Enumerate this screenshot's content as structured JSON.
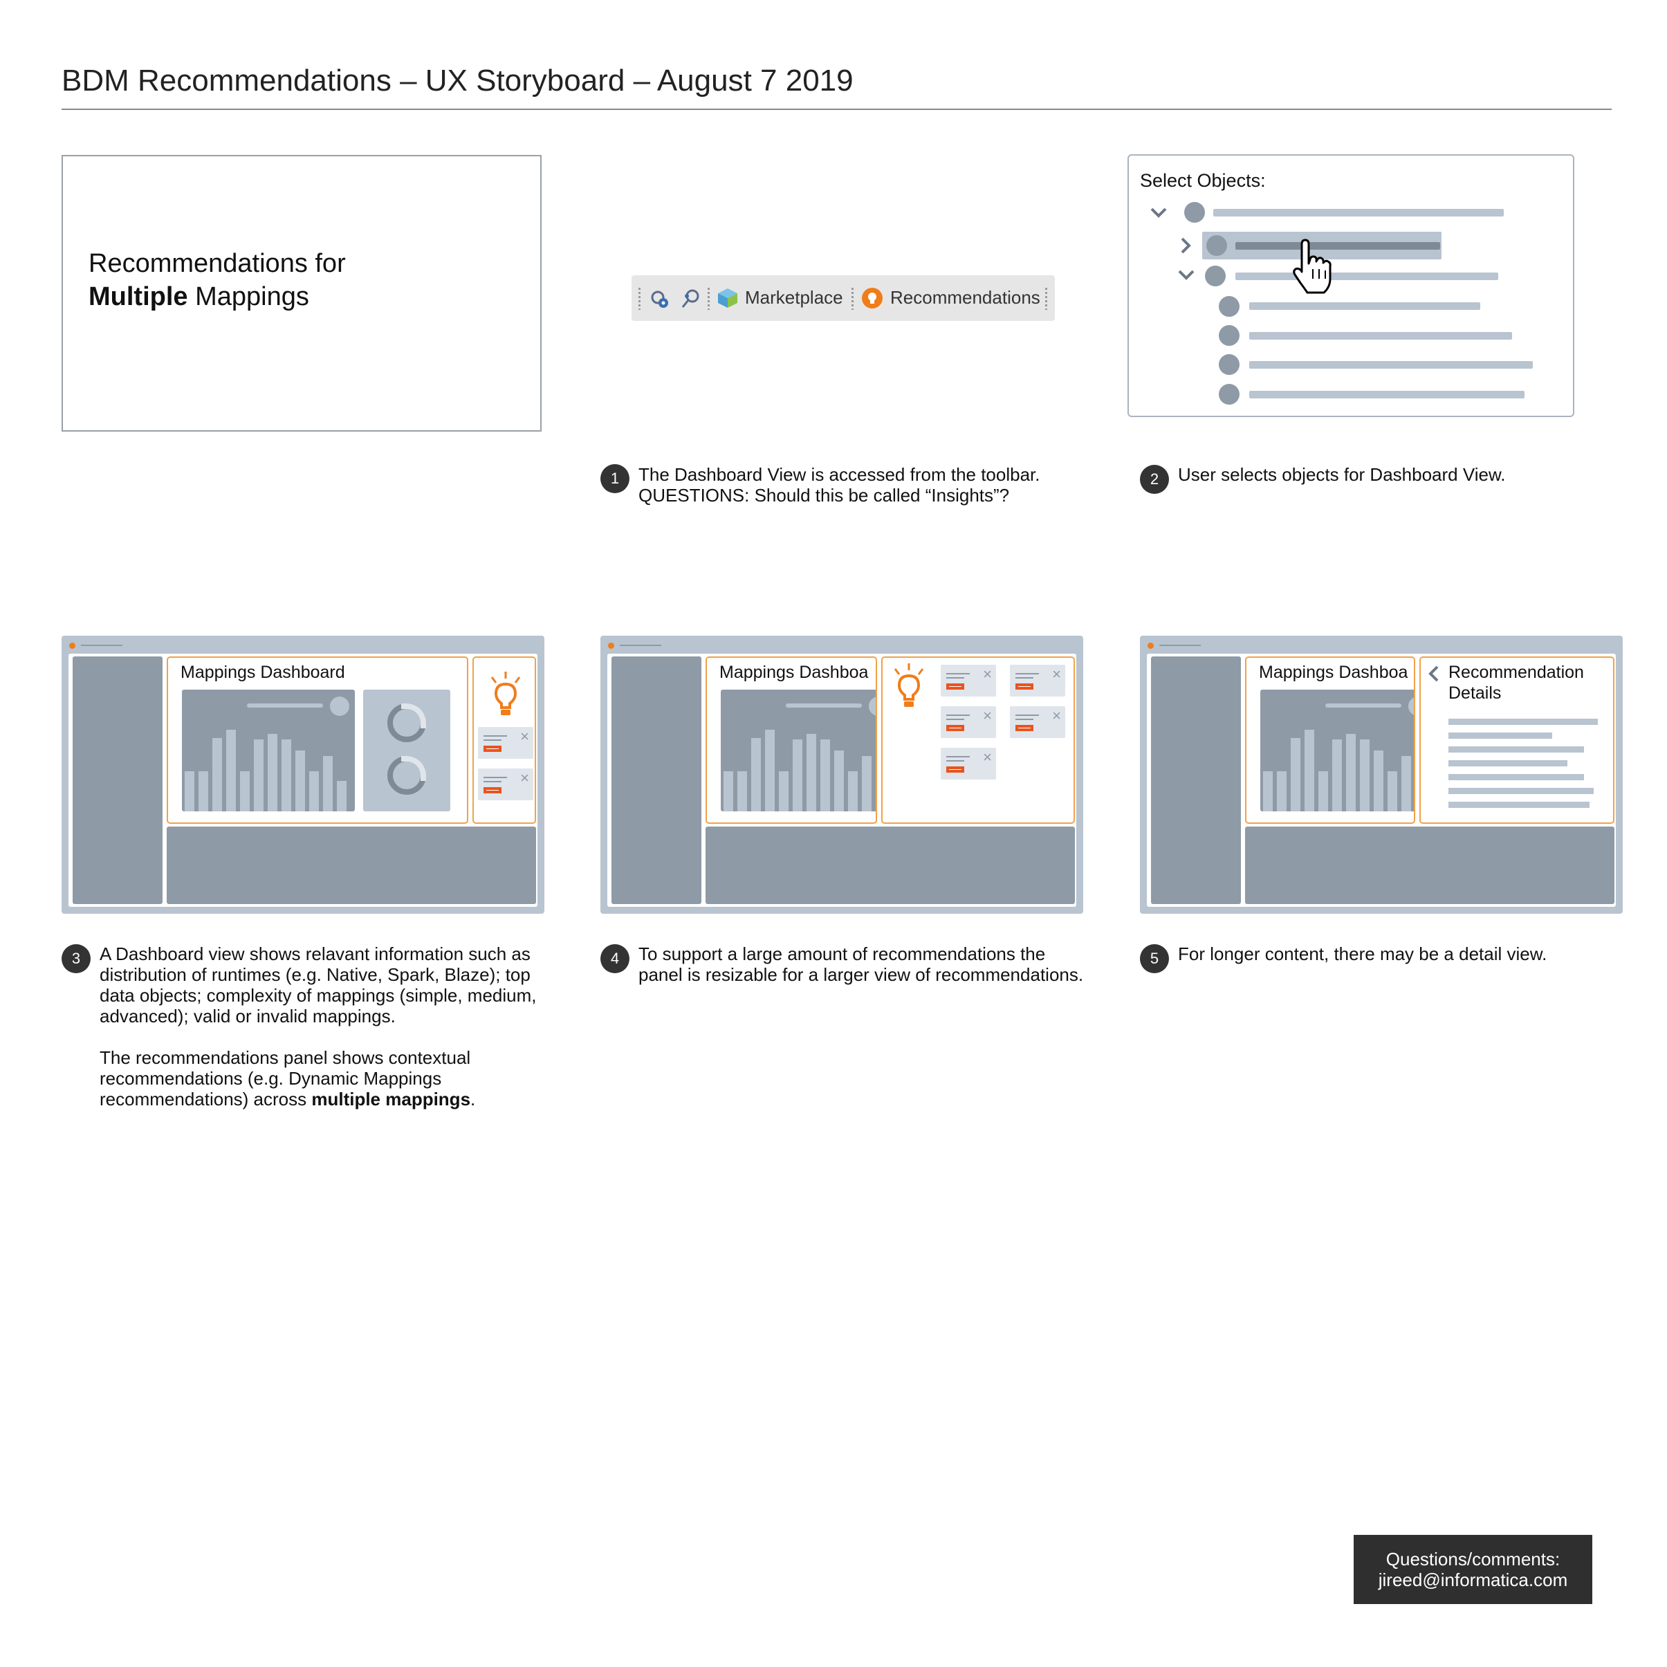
{
  "title": "BDM Recommendations – UX Storyboard – August 7 2019",
  "intro": {
    "line1": "Recommendations for",
    "bold": "Multiple",
    "rest": " Mappings"
  },
  "toolbar": {
    "marketplace_label": "Marketplace",
    "recommendations_label": "Recommendations"
  },
  "select_panel": {
    "label": "Select Objects:"
  },
  "steps": [
    {
      "number": "1",
      "lines": [
        "The Dashboard View is accessed from the toolbar.",
        "QUESTIONS: Should this be called “Insights”?"
      ]
    },
    {
      "number": "2",
      "lines": [
        "User selects objects for Dashboard View."
      ]
    },
    {
      "number": "3",
      "para1": "A Dashboard view shows relavant information such as distribution of runtimes (e.g. Native, Spark, Blaze); top data objects; complexity of mappings (simple, medium, advanced); valid or invalid mappings.",
      "para2_prefix": "The recommendations panel shows contextual recommendations (e.g. Dynamic Mappings recommendations) across ",
      "para2_bold": "multiple mappings",
      "para2_suffix": "."
    },
    {
      "number": "4",
      "lines": [
        "To support a large amount of recommendations the",
        "panel is resizable for a larger view of recommendations."
      ]
    },
    {
      "number": "5",
      "lines": [
        "For longer content, there may be a detail view."
      ]
    }
  ],
  "mockups": {
    "dashboard_title": "Mappings Dashboard",
    "dashboard_title_truncated": "Mappings Dashboa",
    "details_title_line1": "Recommendation",
    "details_title_line2": "Details"
  },
  "contact": {
    "line1": "Questions/comments:",
    "line2": "jireed@informatica.com"
  },
  "colors": {
    "accent_orange": "#f07d1a",
    "panel_gray": "#8e9aa6",
    "frame_blue_gray": "#b8c4d0",
    "button_red": "#e8541d"
  }
}
